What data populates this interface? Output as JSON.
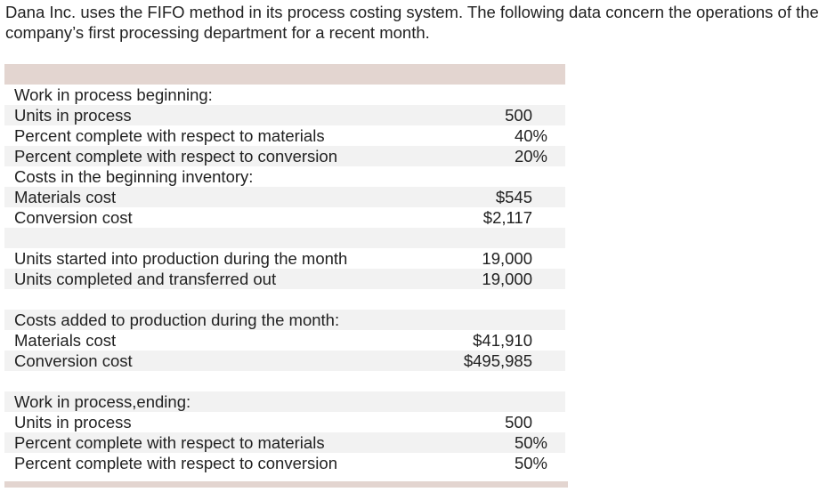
{
  "intro": "Dana Inc. uses the FIFO method in its process costing system. The following data concern the operations of the company’s first processing department for a recent month.",
  "table": {
    "groups": [
      [
        {
          "label": "Work in process beginning:"
        },
        {
          "label": "Units in process",
          "value": "500"
        },
        {
          "label": "Percent complete with respect to materials",
          "value": "40%"
        },
        {
          "label": "Percent complete with respect to conversion",
          "value": "20%"
        },
        {
          "label": "Costs in the beginning inventory:"
        },
        {
          "label": "Materials cost",
          "value": "$545"
        },
        {
          "label": "Conversion cost",
          "value": "$2,117"
        }
      ],
      [
        {
          "label": "Units started into production during the month",
          "value": "19,000"
        },
        {
          "label": "Units completed and transferred out",
          "value": "19,000"
        }
      ],
      [
        {
          "label": "Costs added to production during the month:"
        },
        {
          "label": "Materials cost",
          "value": "$41,910"
        },
        {
          "label": "Conversion cost",
          "value": "$495,985"
        }
      ],
      [
        {
          "label": "Work in process,ending:"
        },
        {
          "label": "Units in process",
          "value": "500"
        },
        {
          "label": "Percent complete with respect to materials",
          "value": "50%"
        },
        {
          "label": "Percent complete with respect to conversion",
          "value": "50%"
        }
      ]
    ]
  }
}
